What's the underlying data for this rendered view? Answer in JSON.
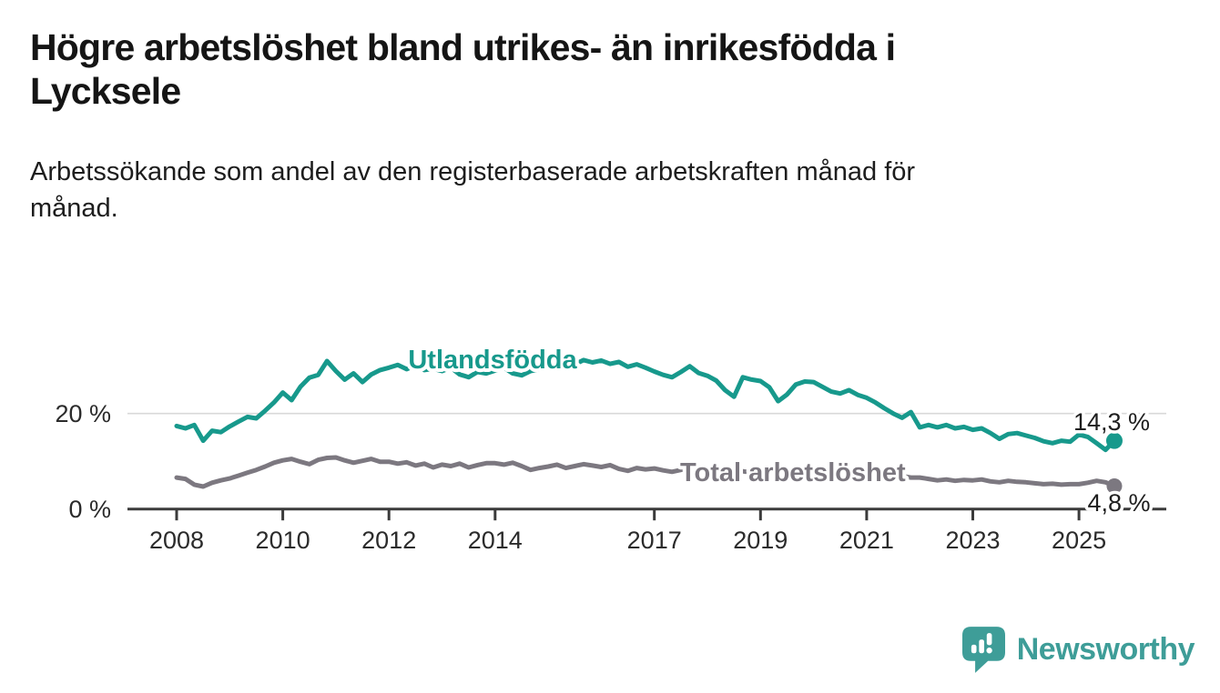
{
  "header": {
    "title": "Högre arbetslöshet bland utrikes- än inrikesfödda i\nLycksele",
    "subtitle": "Arbetssökande som andel av den registerbaserade arbetskraften månad för\nmånad."
  },
  "footer": {
    "brand": "Newsworthy"
  },
  "colors": {
    "accent_teal": "#17998C",
    "line_gray": "#7C7880",
    "axis": "#3B3B3B",
    "gridline": "#D9D9D9",
    "text_dark": "#1E1E1E",
    "brand_teal": "#3E9D98"
  },
  "chart_data": {
    "type": "line",
    "title": "Högre arbetslöshet bland utrikes- än inrikesfödda i Lycksele",
    "subtitle": "Arbetssökande som andel av den registerbaserade arbetskraften månad för månad.",
    "unit": "%",
    "x_start": 2008.0,
    "x_step": 0.1666667,
    "xlim": [
      2008,
      2025.75
    ],
    "ylim": [
      0,
      33
    ],
    "grid": "horizontal-at-20-only",
    "legend_position": "inline-labels-on-lines",
    "x_ticks": [
      {
        "value": 2008,
        "label": "2008"
      },
      {
        "value": 2010,
        "label": "2010"
      },
      {
        "value": 2012,
        "label": "2012"
      },
      {
        "value": 2014,
        "label": "2014"
      },
      {
        "value": 2017,
        "label": "2017"
      },
      {
        "value": 2019,
        "label": "2019"
      },
      {
        "value": 2021,
        "label": "2021"
      },
      {
        "value": 2023,
        "label": "2023"
      },
      {
        "value": 2025,
        "label": "2025"
      }
    ],
    "y_ticks": [
      {
        "value": 20,
        "label": "20 %"
      },
      {
        "value": 0,
        "label": "0 %"
      }
    ],
    "series": [
      {
        "name": "Utlandsfödda",
        "color": "#17998C",
        "end_value": 14.3,
        "end_label": "14,3 %",
        "values": [
          17.4,
          16.9,
          17.6,
          14.3,
          16.4,
          16.1,
          17.3,
          18.3,
          19.3,
          19.0,
          20.6,
          22.3,
          24.4,
          22.8,
          25.6,
          27.5,
          28.1,
          31.0,
          28.9,
          27.1,
          28.4,
          26.6,
          28.2,
          29.1,
          29.6,
          30.2,
          29.3,
          30.1,
          29.1,
          29.4,
          28.9,
          29.6,
          28.2,
          27.6,
          28.7,
          28.4,
          29.0,
          29.6,
          28.4,
          28.0,
          28.9,
          29.3,
          29.7,
          30.1,
          29.3,
          30.3,
          31.2,
          30.7,
          31.1,
          30.4,
          30.8,
          29.8,
          30.3,
          29.6,
          28.8,
          28.1,
          27.6,
          28.7,
          29.9,
          28.5,
          27.9,
          26.9,
          24.9,
          23.5,
          27.6,
          27.1,
          26.8,
          25.5,
          22.6,
          24.0,
          26.1,
          26.7,
          26.6,
          25.6,
          24.6,
          24.2,
          24.9,
          23.9,
          23.3,
          22.3,
          21.1,
          20.0,
          19.1,
          20.3,
          17.1,
          17.6,
          17.1,
          17.6,
          16.9,
          17.2,
          16.6,
          16.9,
          15.9,
          14.7,
          15.7,
          15.9,
          15.4,
          14.9,
          14.2,
          13.8,
          14.3,
          14.1,
          15.6,
          15.1,
          13.8,
          12.4,
          14.3
        ]
      },
      {
        "name": "Total arbetslöshet",
        "color": "#7C7880",
        "end_value": 4.8,
        "end_label": "4,8 %",
        "values": [
          6.6,
          6.3,
          5.1,
          4.7,
          5.5,
          6.0,
          6.4,
          7.0,
          7.6,
          8.2,
          8.9,
          9.7,
          10.2,
          10.5,
          9.9,
          9.4,
          10.3,
          10.7,
          10.8,
          10.2,
          9.7,
          10.1,
          10.5,
          9.9,
          9.9,
          9.5,
          9.8,
          9.1,
          9.5,
          8.7,
          9.3,
          9.0,
          9.5,
          8.7,
          9.2,
          9.6,
          9.6,
          9.3,
          9.7,
          9.0,
          8.2,
          8.6,
          8.9,
          9.3,
          8.6,
          9.0,
          9.4,
          9.1,
          8.8,
          9.2,
          8.4,
          8.0,
          8.6,
          8.3,
          8.5,
          8.1,
          7.8,
          8.2,
          8.5,
          8.2,
          8.0,
          7.7,
          7.4,
          7.7,
          7.9,
          7.6,
          7.4,
          7.2,
          6.9,
          7.1,
          6.8,
          6.6,
          7.2,
          7.6,
          8.0,
          7.8,
          7.5,
          7.3,
          7.1,
          7.3,
          6.9,
          6.7,
          6.9,
          6.6,
          6.6,
          6.3,
          6.0,
          6.2,
          5.9,
          6.1,
          6.0,
          6.2,
          5.8,
          5.6,
          5.9,
          5.7,
          5.6,
          5.4,
          5.2,
          5.3,
          5.1,
          5.2,
          5.2,
          5.5,
          5.9,
          5.6,
          4.8
        ]
      }
    ]
  }
}
